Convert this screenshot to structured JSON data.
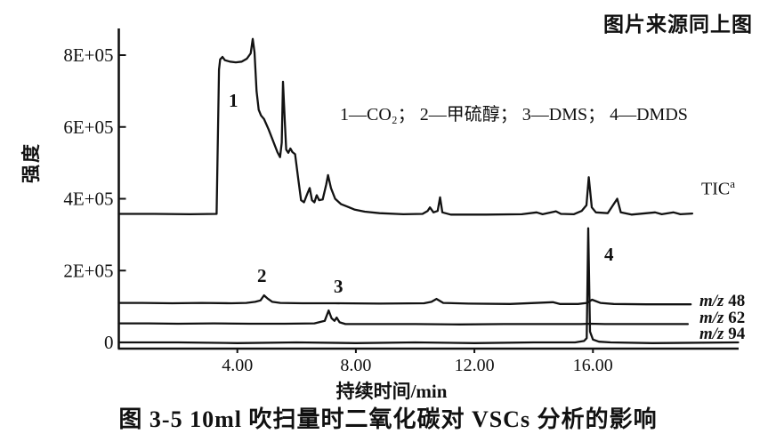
{
  "source_note": "图片来源同上图",
  "caption": "图 3-5  10ml 吹扫量时二氧化碳对 VSCs 分析的影响",
  "chart_data": {
    "type": "line",
    "title": "图 3-5 10ml 吹扫量时二氧化碳对 VSCs 分析的影响",
    "xlabel": "持续时间/min",
    "ylabel": "强度",
    "legend_text": "1—CO₂； 2—甲硫醇； 3—DMS； 4—DMDS",
    "xlim": [
      0,
      21
    ],
    "ylim": [
      0,
      880000
    ],
    "grid": false,
    "x_tick_values": [
      4,
      8,
      12,
      16
    ],
    "x_tick_labels": [
      "4.00",
      "8.00",
      "12.00",
      "16.00"
    ],
    "y_tick_values": [
      800000,
      600000,
      400000,
      200000,
      0
    ],
    "y_tick_labels": [
      "8E+05",
      "6E+05",
      "4E+05",
      "2E+05",
      "0"
    ],
    "peak_annotations": [
      {
        "n": "1",
        "compound": "CO₂",
        "t_min": 4.5
      },
      {
        "n": "2",
        "compound": "甲硫醇",
        "t_min": 4.9
      },
      {
        "n": "3",
        "compound": "DMS",
        "t_min": 7.1
      },
      {
        "n": "4",
        "compound": "DMDS",
        "t_min": 15.85
      }
    ],
    "series": [
      {
        "name": "TIC",
        "label": "TIC",
        "label_sup": "a",
        "points": [
          [
            0,
            358000
          ],
          [
            1.2,
            358000
          ],
          [
            2.4,
            357000
          ],
          [
            3.3,
            358000
          ],
          [
            3.38,
            760000
          ],
          [
            3.42,
            788000
          ],
          [
            3.5,
            795000
          ],
          [
            3.58,
            786000
          ],
          [
            3.75,
            782000
          ],
          [
            3.95,
            780000
          ],
          [
            4.15,
            782000
          ],
          [
            4.32,
            790000
          ],
          [
            4.45,
            805000
          ],
          [
            4.52,
            845000
          ],
          [
            4.58,
            808000
          ],
          [
            4.65,
            700000
          ],
          [
            4.72,
            648000
          ],
          [
            4.8,
            632000
          ],
          [
            4.9,
            622000
          ],
          [
            5.05,
            594000
          ],
          [
            5.2,
            562000
          ],
          [
            5.35,
            530000
          ],
          [
            5.44,
            516000
          ],
          [
            5.5,
            556000
          ],
          [
            5.54,
            726000
          ],
          [
            5.6,
            618000
          ],
          [
            5.65,
            537000
          ],
          [
            5.72,
            528000
          ],
          [
            5.79,
            540000
          ],
          [
            5.86,
            530000
          ],
          [
            5.95,
            524000
          ],
          [
            6.05,
            458000
          ],
          [
            6.15,
            396000
          ],
          [
            6.25,
            390000
          ],
          [
            6.35,
            412000
          ],
          [
            6.44,
            430000
          ],
          [
            6.52,
            396000
          ],
          [
            6.6,
            390000
          ],
          [
            6.68,
            410000
          ],
          [
            6.76,
            396000
          ],
          [
            6.88,
            398000
          ],
          [
            7.0,
            440000
          ],
          [
            7.06,
            466000
          ],
          [
            7.16,
            430000
          ],
          [
            7.3,
            400000
          ],
          [
            7.5,
            385000
          ],
          [
            7.72,
            378000
          ],
          [
            7.95,
            370000
          ],
          [
            8.3,
            364000
          ],
          [
            8.8,
            360000
          ],
          [
            9.6,
            357000
          ],
          [
            10.25,
            358000
          ],
          [
            10.42,
            366000
          ],
          [
            10.5,
            376000
          ],
          [
            10.62,
            362000
          ],
          [
            10.76,
            366000
          ],
          [
            10.84,
            404000
          ],
          [
            10.92,
            362000
          ],
          [
            11.2,
            356000
          ],
          [
            12.4,
            356000
          ],
          [
            13.6,
            357000
          ],
          [
            14.1,
            362000
          ],
          [
            14.3,
            357000
          ],
          [
            14.75,
            365000
          ],
          [
            14.92,
            358000
          ],
          [
            15.35,
            357000
          ],
          [
            15.62,
            366000
          ],
          [
            15.78,
            382000
          ],
          [
            15.86,
            460000
          ],
          [
            15.96,
            376000
          ],
          [
            16.1,
            362000
          ],
          [
            16.5,
            360000
          ],
          [
            16.82,
            400000
          ],
          [
            16.94,
            362000
          ],
          [
            17.3,
            356000
          ],
          [
            18.1,
            362000
          ],
          [
            18.32,
            357000
          ],
          [
            18.72,
            362000
          ],
          [
            18.95,
            357000
          ],
          [
            19.35,
            359000
          ]
        ]
      },
      {
        "name": "m/z 48",
        "label_prefix": "m/z",
        "label_value": "48",
        "points": [
          [
            0,
            110000
          ],
          [
            0.8,
            110000
          ],
          [
            1.8,
            109000
          ],
          [
            2.8,
            110000
          ],
          [
            3.8,
            109000
          ],
          [
            4.3,
            110000
          ],
          [
            4.6,
            113000
          ],
          [
            4.78,
            117000
          ],
          [
            4.9,
            131000
          ],
          [
            5.02,
            122000
          ],
          [
            5.18,
            113000
          ],
          [
            5.45,
            110000
          ],
          [
            6.2,
            109000
          ],
          [
            7.3,
            109000
          ],
          [
            8.8,
            108000
          ],
          [
            10.3,
            109000
          ],
          [
            10.55,
            113000
          ],
          [
            10.72,
            121000
          ],
          [
            10.95,
            110000
          ],
          [
            11.8,
            108000
          ],
          [
            13.2,
            107000
          ],
          [
            14.65,
            112000
          ],
          [
            14.88,
            107000
          ],
          [
            15.5,
            107000
          ],
          [
            15.8,
            110000
          ],
          [
            15.97,
            119000
          ],
          [
            16.25,
            110000
          ],
          [
            16.7,
            107000
          ],
          [
            17.8,
            106000
          ],
          [
            19.3,
            106000
          ]
        ]
      },
      {
        "name": "m/z 62",
        "label_prefix": "m/z",
        "label_value": "62",
        "points": [
          [
            0,
            53000
          ],
          [
            1,
            53000
          ],
          [
            2,
            52000
          ],
          [
            3.2,
            53000
          ],
          [
            4.4,
            52000
          ],
          [
            5.6,
            52000
          ],
          [
            6.6,
            53000
          ],
          [
            6.95,
            60000
          ],
          [
            7.08,
            89000
          ],
          [
            7.18,
            67000
          ],
          [
            7.28,
            60000
          ],
          [
            7.35,
            69000
          ],
          [
            7.45,
            56000
          ],
          [
            7.65,
            51000
          ],
          [
            8.6,
            51000
          ],
          [
            10,
            51000
          ],
          [
            11.5,
            50000
          ],
          [
            13,
            51000
          ],
          [
            14.5,
            51000
          ],
          [
            15.6,
            51000
          ],
          [
            15.9,
            52000
          ],
          [
            16.4,
            51000
          ],
          [
            17.6,
            51000
          ],
          [
            19.2,
            51000
          ]
        ]
      },
      {
        "name": "m/z 94",
        "label_prefix": "m/z",
        "label_value": "94",
        "points": [
          [
            0,
            0
          ],
          [
            2,
            0
          ],
          [
            4,
            -2000
          ],
          [
            6,
            0
          ],
          [
            8,
            -2000
          ],
          [
            10,
            0
          ],
          [
            12,
            -2000
          ],
          [
            14,
            0
          ],
          [
            15.4,
            0
          ],
          [
            15.7,
            4000
          ],
          [
            15.79,
            12000
          ],
          [
            15.84,
            318000
          ],
          [
            15.9,
            30000
          ],
          [
            16.0,
            8000
          ],
          [
            16.2,
            2000
          ],
          [
            16.6,
            0
          ],
          [
            18,
            -2000
          ],
          [
            20.9,
            0
          ]
        ]
      }
    ]
  }
}
